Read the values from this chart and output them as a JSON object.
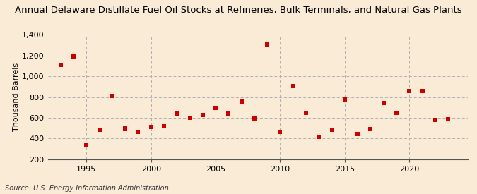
{
  "title": "Annual Delaware Distillate Fuel Oil Stocks at Refineries, Bulk Terminals, and Natural Gas Plants",
  "ylabel": "Thousand Barrels",
  "source": "Source: U.S. Energy Information Administration",
  "background_color": "#faebd7",
  "plot_bg_color": "#faebd7",
  "dot_color": "#cc0000",
  "years": [
    1993,
    1994,
    1995,
    1996,
    1997,
    1998,
    1999,
    2000,
    2001,
    2002,
    2003,
    2004,
    2005,
    2006,
    2007,
    2008,
    2009,
    2010,
    2011,
    2012,
    2013,
    2014,
    2015,
    2016,
    2017,
    2018,
    2019,
    2020,
    2021,
    2022,
    2023
  ],
  "values": [
    1110,
    1190,
    340,
    480,
    810,
    500,
    460,
    510,
    520,
    640,
    600,
    625,
    695,
    640,
    755,
    595,
    1310,
    460,
    905,
    650,
    415,
    480,
    775,
    445,
    490,
    745,
    645,
    855,
    860,
    580,
    585
  ],
  "xlim": [
    1992.0,
    2024.5
  ],
  "ylim": [
    200,
    1400
  ],
  "yticks": [
    200,
    400,
    600,
    800,
    1000,
    1200,
    1400
  ],
  "ytick_labels": [
    "200",
    "400",
    "600",
    "800",
    "1,000",
    "1,200",
    "1,400"
  ],
  "xticks": [
    1995,
    2000,
    2005,
    2010,
    2015,
    2020
  ],
  "grid_color": "#b0b0b0",
  "title_fontsize": 9.5,
  "label_fontsize": 8,
  "tick_fontsize": 8,
  "source_fontsize": 7
}
